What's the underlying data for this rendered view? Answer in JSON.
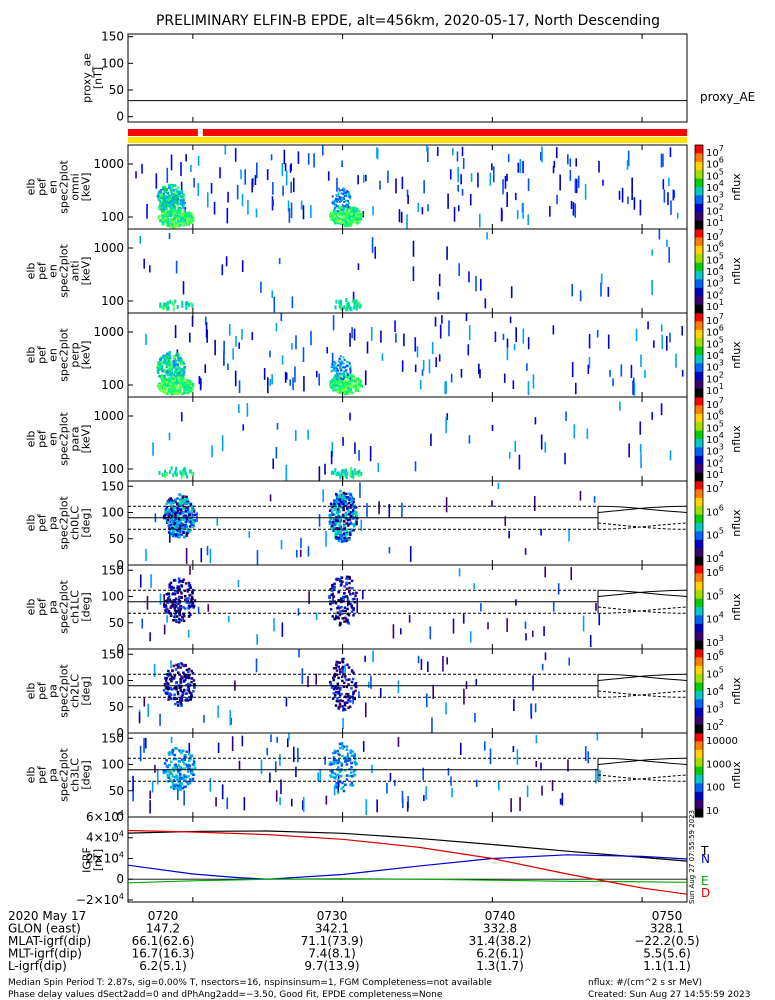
{
  "chart_data": {
    "type": "heatmap",
    "title": "PRELIMINARY ELFIN-B EPDE, alt=456km, 2020-05-17, North Descending",
    "time_axis": {
      "start": "07:15:40",
      "end": "07:53:00",
      "unit": "UT",
      "ticks": [
        "0720",
        "0730",
        "0740",
        "0750"
      ]
    },
    "ae_panel": {
      "ylabel": [
        "proxy_ae",
        "[nT]"
      ],
      "series_name": "proxy_AE",
      "yticks": [
        "150",
        "100",
        "50",
        "0"
      ],
      "ylim": [
        -10,
        155
      ],
      "value": 30
    },
    "status_bar": {
      "colors": {
        "red": "#ff0000",
        "yellow": "#ffe000"
      },
      "red_gap": [
        "07:20:20",
        "07:20:40"
      ]
    },
    "energy_panels": [
      {
        "ylabel": [
          "elb",
          "pef",
          "en",
          "spec2plot",
          "omni",
          "[keV]"
        ],
        "yticks": [
          "1000",
          "100"
        ],
        "cbar_ticks": [
          "10^7",
          "10^6",
          "10^5",
          "10^4",
          "10^3",
          "10^2",
          "10^1"
        ],
        "cbar_unit": "nflux"
      },
      {
        "ylabel": [
          "elb",
          "pef",
          "en",
          "spec2plot",
          "anti",
          "[keV]"
        ],
        "yticks": [
          "1000",
          "100"
        ],
        "cbar_ticks": [
          "10^7",
          "10^6",
          "10^5",
          "10^4",
          "10^3",
          "10^2",
          "10^1"
        ],
        "cbar_unit": "nflux"
      },
      {
        "ylabel": [
          "elb",
          "pef",
          "en",
          "spec2plot",
          "perp",
          "[keV]"
        ],
        "yticks": [
          "1000",
          "100"
        ],
        "cbar_ticks": [
          "10^7",
          "10^6",
          "10^5",
          "10^4",
          "10^3",
          "10^2",
          "10^1"
        ],
        "cbar_unit": "nflux"
      },
      {
        "ylabel": [
          "elb",
          "pef",
          "en",
          "spec2plot",
          "para",
          "[keV]"
        ],
        "yticks": [
          "1000",
          "100"
        ],
        "cbar_ticks": [
          "10^7",
          "10^6",
          "10^5",
          "10^4",
          "10^3",
          "10^2",
          "10^1"
        ],
        "cbar_unit": "nflux"
      }
    ],
    "pa_panels": [
      {
        "ylabel": [
          "elb",
          "pef",
          "pa",
          "spec2plot",
          "ch0LC",
          "[deg]"
        ],
        "yticks": [
          "150",
          "100",
          "50",
          "0"
        ],
        "cbar_ticks": [
          "10^7",
          "10^6",
          "10^5",
          "10^4"
        ],
        "cbar_unit": "nflux"
      },
      {
        "ylabel": [
          "elb",
          "pef",
          "pa",
          "spec2plot",
          "ch1LC",
          "[deg]"
        ],
        "yticks": [
          "150",
          "100",
          "50",
          "0"
        ],
        "cbar_ticks": [
          "10^6",
          "10^5",
          "10^4",
          "10^3"
        ],
        "cbar_unit": "nflux"
      },
      {
        "ylabel": [
          "elb",
          "pef",
          "pa",
          "spec2plot",
          "ch2LC",
          "[deg]"
        ],
        "yticks": [
          "150",
          "100",
          "50",
          "0"
        ],
        "cbar_ticks": [
          "10^6",
          "10^5",
          "10^4",
          "10^3",
          "10^2"
        ],
        "cbar_unit": "nflux"
      },
      {
        "ylabel": [
          "elb",
          "pef",
          "pa",
          "spec2plot",
          "ch3LC",
          "[deg]"
        ],
        "yticks": [
          "150",
          "100",
          "50",
          "0"
        ],
        "cbar_ticks": [
          "10000",
          "1000",
          "100",
          "10"
        ],
        "cbar_unit": "nflux"
      }
    ],
    "igrf_panel": {
      "ylabel": [
        "IGRF",
        "[nT]"
      ],
      "yticks": [
        "6×10^4",
        "4×10^4",
        "2×10^4",
        "0",
        "−2×10^4"
      ],
      "ylim": [
        -22000,
        60000
      ],
      "series": [
        {
          "name": "T",
          "color": "#000000",
          "points": [
            [
              "07:15:40",
              44500
            ],
            [
              "07:20:30",
              46200
            ],
            [
              "07:25:00",
              46500
            ],
            [
              "07:30:00",
              44300
            ],
            [
              "07:35:00",
              39500
            ],
            [
              "07:40:00",
              33500
            ],
            [
              "07:45:00",
              27000
            ],
            [
              "07:50:00",
              21000
            ],
            [
              "07:53:00",
              17500
            ]
          ]
        },
        {
          "name": "N",
          "color": "#0000cc",
          "points": [
            [
              "07:15:40",
              13500
            ],
            [
              "07:20:00",
              5000
            ],
            [
              "07:23:00",
              1500
            ],
            [
              "07:25:00",
              0
            ],
            [
              "07:30:00",
              4500
            ],
            [
              "07:35:00",
              12500
            ],
            [
              "07:40:00",
              20000
            ],
            [
              "07:45:00",
              23500
            ],
            [
              "07:50:00",
              22000
            ],
            [
              "07:53:00",
              19500
            ]
          ]
        },
        {
          "name": "E",
          "color": "#00aa00",
          "points": [
            [
              "07:15:40",
              -3500
            ],
            [
              "07:20:00",
              -1500
            ],
            [
              "07:25:00",
              0
            ],
            [
              "07:30:00",
              500
            ],
            [
              "07:35:00",
              0
            ],
            [
              "07:40:00",
              -1000
            ],
            [
              "07:45:00",
              -2000
            ],
            [
              "07:50:00",
              -2500
            ],
            [
              "07:53:00",
              -3000
            ]
          ]
        },
        {
          "name": "D",
          "color": "#dd0000",
          "points": [
            [
              "07:15:40",
              47000
            ],
            [
              "07:20:00",
              45500
            ],
            [
              "07:25:00",
              43000
            ],
            [
              "07:30:00",
              38500
            ],
            [
              "07:35:00",
              31000
            ],
            [
              "07:40:00",
              20000
            ],
            [
              "07:45:00",
              5000
            ],
            [
              "07:50:00",
              -8500
            ],
            [
              "07:53:00",
              -14500
            ]
          ]
        }
      ]
    },
    "footer_table": {
      "rows": [
        {
          "label": "2020 May 17",
          "values": [
            "0720",
            "0730",
            "0740",
            "0750"
          ]
        },
        {
          "label": "GLON (east)",
          "values": [
            "147.2",
            "342.1",
            "332.8",
            "328.1"
          ]
        },
        {
          "label": "MLAT-igrf(dip)",
          "values": [
            "66.1(62.6)",
            "71.1(73.9)",
            "31.4(38.2)",
            "−22.2(0.5)"
          ]
        },
        {
          "label": "MLT-igrf(dip)",
          "values": [
            "16.7(16.3)",
            "7.4(8.1)",
            "6.2(6.1)",
            "5.5(5.6)"
          ]
        },
        {
          "label": "L-igrf(dip)",
          "values": [
            "6.2(5.1)",
            "9.7(13.9)",
            "1.3(1.7)",
            "1.1(1.1)"
          ]
        }
      ]
    }
  },
  "footer": {
    "line1": "Median Spin Period T: 2.87s, sig=0.00% T, nsectors=16, nspinsinsum=1, FGM Completeness=not available",
    "line2": "Phase delay values dSect2add=0 and dPhAng2add=−3.50, Good Fit, EPDE completeness=None",
    "unit_note": "nflux: #/(cm^2 s sr MeV)",
    "created": "Created: Sun Aug 27 14:55:59 2023",
    "stamp": "Sun Aug 27 07:55:59 2023"
  },
  "colors": {
    "accent_red": "#ff0000",
    "accent_yellow": "#ffe000"
  }
}
